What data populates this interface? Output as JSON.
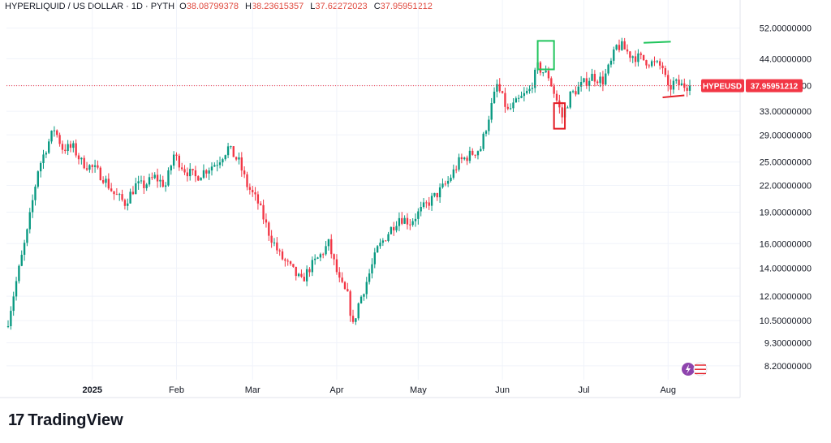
{
  "header": {
    "symbol": "HYPERLIQUID / US DOLLAR · 1D · PYTH",
    "o_label": "O",
    "o_value": "38.08799378",
    "h_label": "H",
    "h_value": "38.23615357",
    "l_label": "L",
    "l_value": "37.62272023",
    "c_label": "C",
    "c_value": "37.95951212"
  },
  "price_tag": {
    "symbol": "HYPEUSD",
    "value": "37.95951212"
  },
  "brand": {
    "name": "TradingView",
    "mark": "17"
  },
  "colors": {
    "up": "#089981",
    "down": "#f23645",
    "grid": "#f0f3fa",
    "axis_text": "#131722"
  },
  "chart_data": {
    "type": "candlestick",
    "title": "",
    "xlabel": "",
    "ylabel": "",
    "y_scale": "log",
    "ylim": [
      7.6,
      57
    ],
    "y_ticks": [
      {
        "value": 52,
        "label": "52.00000000"
      },
      {
        "value": 44,
        "label": "44.00000000"
      },
      {
        "value": 38,
        "label": "38.00000000"
      },
      {
        "value": 33,
        "label": "33.00000000"
      },
      {
        "value": 29,
        "label": "29.00000000"
      },
      {
        "value": 25,
        "label": "25.00000000"
      },
      {
        "value": 22,
        "label": "22.00000000"
      },
      {
        "value": 19,
        "label": "19.00000000"
      },
      {
        "value": 16,
        "label": "16.00000000"
      },
      {
        "value": 14,
        "label": "14.00000000"
      },
      {
        "value": 12,
        "label": "12.00000000"
      },
      {
        "value": 10.5,
        "label": "10.50000000"
      },
      {
        "value": 9.3,
        "label": "9.30000000"
      },
      {
        "value": 8.2,
        "label": "8.20000000"
      }
    ],
    "x_labels": [
      {
        "date": "2025-01-01",
        "label": "2025",
        "bold": true
      },
      {
        "date": "2025-02-01",
        "label": "Feb"
      },
      {
        "date": "2025-03-01",
        "label": "Mar"
      },
      {
        "date": "2025-04-01",
        "label": "Apr"
      },
      {
        "date": "2025-05-01",
        "label": "May"
      },
      {
        "date": "2025-06-01",
        "label": "Jun"
      },
      {
        "date": "2025-07-01",
        "label": "Jul"
      },
      {
        "date": "2025-08-01",
        "label": "Aug"
      }
    ],
    "start_date": "2024-12-01",
    "end_date": "2025-08-09",
    "anchors": [
      [
        "2024-12-01",
        10.5
      ],
      [
        "2024-12-04",
        13
      ],
      [
        "2024-12-08",
        17
      ],
      [
        "2024-12-12",
        24
      ],
      [
        "2024-12-15",
        27
      ],
      [
        "2024-12-18",
        30
      ],
      [
        "2024-12-21",
        27
      ],
      [
        "2024-12-25",
        27
      ],
      [
        "2024-12-28",
        25
      ],
      [
        "2025-01-02",
        24
      ],
      [
        "2025-01-05",
        23
      ],
      [
        "2025-01-09",
        21
      ],
      [
        "2025-01-13",
        20
      ],
      [
        "2025-01-17",
        22
      ],
      [
        "2025-01-20",
        22
      ],
      [
        "2025-01-24",
        23
      ],
      [
        "2025-01-28",
        22
      ],
      [
        "2025-01-31",
        26
      ],
      [
        "2025-02-04",
        24
      ],
      [
        "2025-02-08",
        23
      ],
      [
        "2025-02-12",
        24
      ],
      [
        "2025-02-16",
        25
      ],
      [
        "2025-02-20",
        27
      ],
      [
        "2025-02-24",
        25
      ],
      [
        "2025-02-27",
        22
      ],
      [
        "2025-03-03",
        20
      ],
      [
        "2025-03-07",
        17
      ],
      [
        "2025-03-11",
        15
      ],
      [
        "2025-03-15",
        14
      ],
      [
        "2025-03-19",
        13
      ],
      [
        "2025-03-22",
        14
      ],
      [
        "2025-03-26",
        15
      ],
      [
        "2025-03-29",
        16
      ],
      [
        "2025-04-02",
        13
      ],
      [
        "2025-04-05",
        12
      ],
      [
        "2025-04-07",
        10.2
      ],
      [
        "2025-04-09",
        11.5
      ],
      [
        "2025-04-12",
        13
      ],
      [
        "2025-04-16",
        15.5
      ],
      [
        "2025-04-20",
        17
      ],
      [
        "2025-04-24",
        18.5
      ],
      [
        "2025-04-28",
        18
      ],
      [
        "2025-05-03",
        19.5
      ],
      [
        "2025-05-08",
        21
      ],
      [
        "2025-05-12",
        22.5
      ],
      [
        "2025-05-16",
        25
      ],
      [
        "2025-05-20",
        26
      ],
      [
        "2025-05-24",
        27
      ],
      [
        "2025-05-28",
        34
      ],
      [
        "2025-05-30",
        38
      ],
      [
        "2025-06-03",
        33
      ],
      [
        "2025-06-07",
        35
      ],
      [
        "2025-06-11",
        37
      ],
      [
        "2025-06-14",
        42
      ],
      [
        "2025-06-16",
        41
      ],
      [
        "2025-06-18",
        40
      ],
      [
        "2025-06-21",
        35
      ],
      [
        "2025-06-23",
        32
      ],
      [
        "2025-06-26",
        36
      ],
      [
        "2025-06-30",
        38
      ],
      [
        "2025-07-04",
        40
      ],
      [
        "2025-07-08",
        39
      ],
      [
        "2025-07-11",
        43
      ],
      [
        "2025-07-13",
        47
      ],
      [
        "2025-07-15",
        47
      ],
      [
        "2025-07-18",
        45
      ],
      [
        "2025-07-22",
        44
      ],
      [
        "2025-07-26",
        43
      ],
      [
        "2025-07-30",
        42
      ],
      [
        "2025-08-01",
        37
      ],
      [
        "2025-08-03",
        38.5
      ],
      [
        "2025-08-06",
        38
      ],
      [
        "2025-08-09",
        37.96
      ]
    ],
    "last_price": 37.95951212,
    "annotations": [
      {
        "type": "box",
        "color": "#22c55e",
        "x0": "2025-06-14",
        "x1": "2025-06-20",
        "y0": 41.5,
        "y1": 48.5
      },
      {
        "type": "box",
        "color": "#e31b23",
        "x0": "2025-06-20",
        "x1": "2025-06-24",
        "y0": 30.0,
        "y1": 34.5
      },
      {
        "type": "line",
        "color": "#22c55e",
        "x0": "2025-07-23",
        "x1": "2025-08-02",
        "y0": 48.0,
        "y1": 48.3
      },
      {
        "type": "line",
        "color": "#e31b23",
        "x0": "2025-07-30",
        "x1": "2025-08-07",
        "y0": 35.6,
        "y1": 36.0
      }
    ]
  }
}
